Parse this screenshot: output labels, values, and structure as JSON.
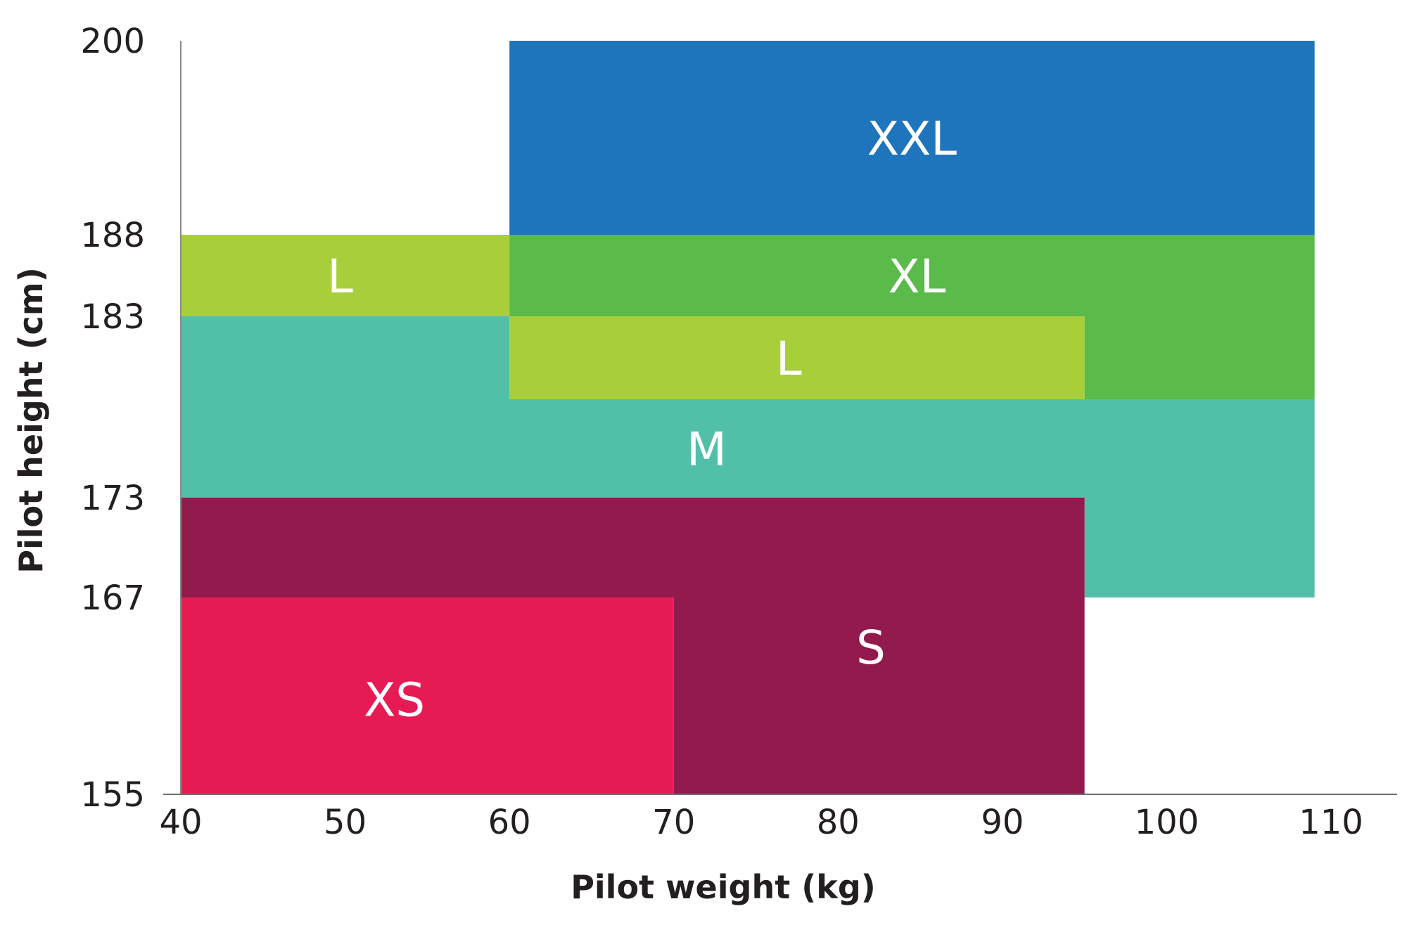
{
  "chart_data": {
    "type": "area",
    "title": "",
    "xlabel": "Pilot weight (kg)",
    "ylabel": "Pilot height (cm)",
    "xlim": [
      40,
      110
    ],
    "ylim": [
      155,
      200
    ],
    "x_ticks": [
      "40",
      "50",
      "60",
      "70",
      "80",
      "90",
      "100",
      "110"
    ],
    "y_ticks": [
      "155",
      "167",
      "173",
      "183",
      "188",
      "200"
    ],
    "grid": false,
    "zones": [
      {
        "label": "M",
        "color": "#52bfa8",
        "polygon": [
          [
            40,
            173
          ],
          [
            40,
            183
          ],
          [
            60,
            183
          ],
          [
            60,
            178
          ],
          [
            109,
            178
          ],
          [
            109,
            167
          ],
          [
            95,
            167
          ],
          [
            95,
            173
          ]
        ]
      },
      {
        "label": "S",
        "color": "#931a4c",
        "polygon": [
          [
            40,
            167
          ],
          [
            40,
            173
          ],
          [
            95,
            173
          ],
          [
            95,
            155
          ],
          [
            70,
            155
          ],
          [
            70,
            167
          ]
        ]
      },
      {
        "label": "XS",
        "color": "#e71b53",
        "polygon": [
          [
            40,
            155
          ],
          [
            40,
            167
          ],
          [
            70,
            167
          ],
          [
            70,
            155
          ]
        ]
      },
      {
        "label": "L",
        "color": "#a8cf39",
        "polygon": [
          [
            40,
            183
          ],
          [
            40,
            188
          ],
          [
            60,
            188
          ],
          [
            60,
            183
          ]
        ]
      },
      {
        "label": "XL",
        "color": "#5aba4a",
        "polygon": [
          [
            60,
            183
          ],
          [
            60,
            188
          ],
          [
            109,
            188
          ],
          [
            109,
            178
          ],
          [
            95,
            178
          ],
          [
            95,
            183
          ]
        ]
      },
      {
        "label": "L",
        "color": "#a8cf39",
        "polygon": [
          [
            60,
            178
          ],
          [
            60,
            183
          ],
          [
            95,
            183
          ],
          [
            95,
            178
          ]
        ]
      },
      {
        "label": "XXL",
        "color": "#1f75bc",
        "polygon": [
          [
            60,
            188
          ],
          [
            60,
            200
          ],
          [
            109,
            200
          ],
          [
            109,
            188
          ]
        ]
      }
    ],
    "label_positions": [
      {
        "label": "XXL",
        "x": 84.5,
        "y": 194
      },
      {
        "label": "L",
        "x": 49.7,
        "y": 185.5
      },
      {
        "label": "XL",
        "x": 84.8,
        "y": 185.5
      },
      {
        "label": "L",
        "x": 77,
        "y": 180.5
      },
      {
        "label": "M",
        "x": 72,
        "y": 175.5
      },
      {
        "label": "S",
        "x": 82,
        "y": 164
      },
      {
        "label": "XS",
        "x": 53,
        "y": 160.8
      }
    ]
  },
  "colors": {
    "axis": "#231f20",
    "text": "#231f20"
  }
}
